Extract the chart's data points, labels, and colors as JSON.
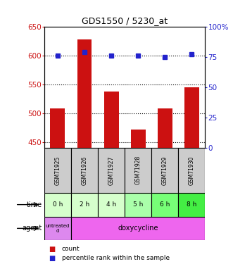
{
  "title": "GDS1550 / 5230_at",
  "samples": [
    "GSM71925",
    "GSM71926",
    "GSM71927",
    "GSM71928",
    "GSM71929",
    "GSM71930"
  ],
  "count_values": [
    508,
    628,
    537,
    472,
    508,
    545
  ],
  "percentile_values": [
    76,
    79,
    76,
    76,
    75,
    77
  ],
  "ylim_left": [
    440,
    650
  ],
  "ylim_right": [
    0,
    100
  ],
  "left_ticks": [
    450,
    500,
    550,
    600,
    650
  ],
  "right_ticks": [
    0,
    25,
    50,
    75,
    100
  ],
  "right_tick_labels": [
    "0",
    "25",
    "50",
    "75",
    "100%"
  ],
  "time_labels": [
    "0 h",
    "2 h",
    "4 h",
    "5 h",
    "6 h",
    "8 h"
  ],
  "time_colors": [
    "#d6ffcc",
    "#d6ffcc",
    "#d6ffcc",
    "#aaffaa",
    "#77ff77",
    "#44ee44"
  ],
  "agent_untreated_color": "#dd88ee",
  "agent_doxycy_color": "#ee66ee",
  "sample_bg_color": "#cccccc",
  "bar_color": "#cc1111",
  "dot_color": "#2222cc",
  "bg_color": "#ffffff",
  "left_axis_color": "#cc1111",
  "right_axis_color": "#2222cc",
  "label_fontsize": 7,
  "tick_fontsize": 7.5
}
